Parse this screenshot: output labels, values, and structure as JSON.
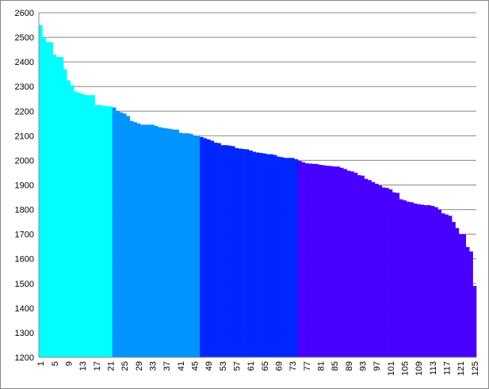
{
  "chart_data": {
    "type": "bar",
    "categories": [
      "1",
      null,
      null,
      null,
      "5",
      null,
      null,
      null,
      "9",
      null,
      null,
      null,
      "13",
      null,
      null,
      null,
      "17",
      null,
      null,
      null,
      "21",
      null,
      null,
      null,
      "25",
      null,
      null,
      null,
      "29",
      null,
      null,
      null,
      "33",
      null,
      null,
      null,
      "37",
      null,
      null,
      null,
      "41",
      null,
      null,
      null,
      "45",
      null,
      null,
      null,
      "49",
      null,
      null,
      null,
      "53",
      null,
      null,
      null,
      "57",
      null,
      null,
      null,
      "61",
      null,
      null,
      null,
      "65",
      null,
      null,
      null,
      "69",
      null,
      null,
      null,
      "73",
      null,
      null,
      null,
      "77",
      null,
      null,
      null,
      "81",
      null,
      null,
      null,
      "85",
      null,
      null,
      null,
      "89",
      null,
      null,
      null,
      "93",
      null,
      null,
      null,
      "97",
      null,
      null,
      null,
      "101",
      null,
      null,
      null,
      "105",
      null,
      null,
      null,
      "109",
      null,
      null,
      null,
      "113",
      null,
      null,
      null,
      "117",
      null,
      null,
      null,
      "121",
      null,
      null,
      null,
      "125"
    ],
    "values": [
      2550,
      2500,
      2480,
      2480,
      2430,
      2420,
      2420,
      2370,
      2325,
      2305,
      2280,
      2275,
      2270,
      2265,
      2265,
      2265,
      2225,
      2225,
      2222,
      2220,
      2220,
      2215,
      2200,
      2195,
      2190,
      2180,
      2160,
      2155,
      2150,
      2145,
      2145,
      2145,
      2145,
      2140,
      2135,
      2132,
      2130,
      2128,
      2125,
      2125,
      2112,
      2110,
      2110,
      2108,
      2100,
      2098,
      2095,
      2090,
      2085,
      2080,
      2072,
      2070,
      2062,
      2062,
      2060,
      2058,
      2050,
      2048,
      2046,
      2045,
      2040,
      2035,
      2032,
      2030,
      2028,
      2025,
      2025,
      2022,
      2015,
      2013,
      2010,
      2010,
      2010,
      2005,
      1998,
      1993,
      1988,
      1987,
      1986,
      1985,
      1982,
      1980,
      1978,
      1977,
      1975,
      1975,
      1970,
      1965,
      1958,
      1955,
      1950,
      1940,
      1938,
      1925,
      1920,
      1912,
      1905,
      1898,
      1890,
      1888,
      1882,
      1870,
      1868,
      1842,
      1838,
      1832,
      1830,
      1825,
      1822,
      1820,
      1818,
      1818,
      1815,
      1810,
      1800,
      1785,
      1780,
      1775,
      1750,
      1725,
      1700,
      1700,
      1648,
      1630,
      1490
    ],
    "colors": [
      "#00ffff",
      "#00ffff",
      "#00ffff",
      "#00ffff",
      "#00ffff",
      "#00ffff",
      "#00ffff",
      "#00ffff",
      "#00ffff",
      "#00ffff",
      "#00ffff",
      "#00ffff",
      "#00ffff",
      "#00ffff",
      "#00ffff",
      "#00ffff",
      "#00ffff",
      "#00ffff",
      "#00ffff",
      "#00ffff",
      "#00ffff",
      "#0094ff",
      "#0094ff",
      "#0094ff",
      "#0094ff",
      "#0094ff",
      "#0094ff",
      "#0094ff",
      "#0094ff",
      "#0094ff",
      "#0094ff",
      "#0094ff",
      "#0094ff",
      "#0094ff",
      "#0094ff",
      "#0094ff",
      "#0094ff",
      "#0094ff",
      "#0094ff",
      "#0094ff",
      "#0094ff",
      "#0094ff",
      "#0094ff",
      "#0094ff",
      "#0094ff",
      "#0094ff",
      "#0026ff",
      "#0026ff",
      "#0026ff",
      "#0026ff",
      "#0026ff",
      "#0026ff",
      "#0026ff",
      "#0026ff",
      "#0026ff",
      "#0026ff",
      "#0026ff",
      "#0026ff",
      "#0026ff",
      "#0026ff",
      "#0026ff",
      "#0026ff",
      "#0026ff",
      "#0026ff",
      "#0026ff",
      "#0026ff",
      "#0026ff",
      "#0026ff",
      "#0026ff",
      "#0026ff",
      "#0026ff",
      "#0026ff",
      "#0026ff",
      "#0026ff",
      "#4800ff",
      "#4800ff",
      "#4800ff",
      "#4800ff",
      "#4800ff",
      "#4800ff",
      "#4800ff",
      "#4800ff",
      "#4800ff",
      "#4800ff",
      "#4800ff",
      "#4800ff",
      "#4800ff",
      "#4800ff",
      "#4800ff",
      "#4800ff",
      "#4800ff",
      "#4800ff",
      "#4800ff",
      "#4800ff",
      "#4800ff",
      "#4800ff",
      "#4800ff",
      "#4800ff",
      "#4800ff",
      "#4800ff",
      "#4800ff",
      "#4800ff",
      "#4800ff",
      "#4800ff",
      "#4800ff",
      "#4800ff",
      "#4800ff",
      "#4800ff",
      "#4800ff",
      "#4800ff",
      "#4800ff",
      "#4800ff",
      "#4800ff",
      "#4800ff",
      "#4800ff",
      "#4800ff",
      "#4800ff",
      "#4800ff",
      "#4800ff",
      "#4800ff",
      "#4800ff",
      "#4800ff",
      "#4800ff",
      "#4800ff",
      "#4800ff"
    ],
    "ylim": [
      1200,
      2600
    ],
    "yticks": [
      1200,
      1300,
      1400,
      1500,
      1600,
      1700,
      1800,
      1900,
      2000,
      2100,
      2200,
      2300,
      2400,
      2500,
      2600
    ],
    "grid": true
  }
}
